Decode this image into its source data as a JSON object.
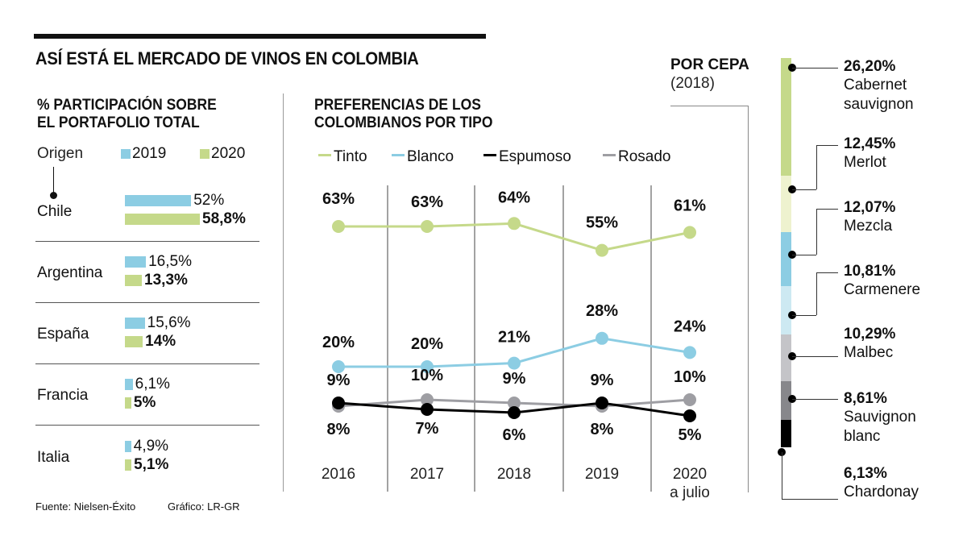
{
  "title": "ASÍ ESTÁ EL MERCADO DE VINOS EN COLOMBIA",
  "footer": {
    "source": "Fuente: Nielsen-Éxito",
    "credit": "Gráfico: LR-GR"
  },
  "colors": {
    "y2019": "#8ccde3",
    "y2020": "#c5d98a",
    "tinto": "#c5d98a",
    "blanco": "#8ccde3",
    "espumoso": "#000000",
    "rosado": "#9e9ea3"
  },
  "chart_data": [
    {
      "type": "bar",
      "title": "% PARTICIPACIÓN SOBRE EL PORTAFOLIO TOTAL",
      "title_lines": [
        "% PARTICIPACIÓN SOBRE",
        "EL PORTAFOLIO TOTAL"
      ],
      "category_header": "Origen",
      "categories": [
        "Chile",
        "Argentina",
        "España",
        "Francia",
        "Italia"
      ],
      "series": [
        {
          "name": "2019",
          "values": [
            52,
            16.5,
            15.6,
            6.1,
            4.9
          ],
          "labels": [
            "52%",
            "16,5%",
            "15,6%",
            "6,1%",
            "4,9%"
          ]
        },
        {
          "name": "2020",
          "values": [
            58.8,
            13.3,
            14,
            5,
            5.1
          ],
          "labels": [
            "58,8%",
            "13,3%",
            "14%",
            "5%",
            "5,1%"
          ]
        }
      ],
      "orientation": "horizontal",
      "legend": "top"
    },
    {
      "type": "line",
      "title": "PREFERENCIAS DE LOS COLOMBIANOS POR TIPO",
      "title_lines": [
        "PREFERENCIAS DE LOS",
        "COLOMBIANOS POR TIPO"
      ],
      "x": [
        "2016",
        "2017",
        "2018",
        "2019",
        "2020"
      ],
      "x_labels": [
        [
          "2016"
        ],
        [
          "2017"
        ],
        [
          "2018"
        ],
        [
          "2019"
        ],
        [
          "2020",
          "a julio"
        ]
      ],
      "series": [
        {
          "name": "Tinto",
          "values": [
            63,
            63,
            64,
            55,
            61
          ],
          "labels": [
            "63%",
            "63%",
            "64%",
            "55%",
            "61%"
          ]
        },
        {
          "name": "Blanco",
          "values": [
            20,
            20,
            21,
            28,
            24
          ],
          "labels": [
            "20%",
            "20%",
            "21%",
            "28%",
            "24%"
          ]
        },
        {
          "name": "Espumoso",
          "values": [
            9,
            7,
            6,
            9,
            5
          ],
          "labels": [
            "9%",
            "7%",
            "6%",
            "9%",
            "5%"
          ]
        },
        {
          "name": "Rosado",
          "values": [
            8,
            10,
            9,
            8,
            10
          ],
          "labels": [
            "8%",
            "10%",
            "9%",
            "8%",
            "10%"
          ]
        }
      ],
      "ylim": [
        0,
        70
      ],
      "grid": "vertical separators",
      "legend": "top"
    },
    {
      "type": "bar",
      "title": "POR CEPA",
      "subtitle": "(2018)",
      "stacked": true,
      "categories": [
        "Cabernet sauvignon",
        "Merlot",
        "Mezcla",
        "Carmenere",
        "Malbec",
        "Sauvignon blanc",
        "Chardonay"
      ],
      "name_lines": [
        [
          "Cabernet",
          "sauvignon"
        ],
        [
          "Merlot"
        ],
        [
          "Mezcla"
        ],
        [
          "Carmenere"
        ],
        [
          "Malbec"
        ],
        [
          "Sauvignon",
          "blanc"
        ],
        [
          "Chardonay"
        ]
      ],
      "values": [
        26.2,
        12.45,
        12.07,
        10.81,
        10.29,
        8.61,
        6.13
      ],
      "labels": [
        "26,20%",
        "12,45%",
        "12,07%",
        "10,81%",
        "10,29%",
        "8,61%",
        "6,13%"
      ],
      "segment_colors": [
        "#c5d98a",
        "#eef2cf",
        "#8ccde3",
        "#cde9f2",
        "#c4c4c8",
        "#87878b",
        "#000000"
      ]
    }
  ]
}
